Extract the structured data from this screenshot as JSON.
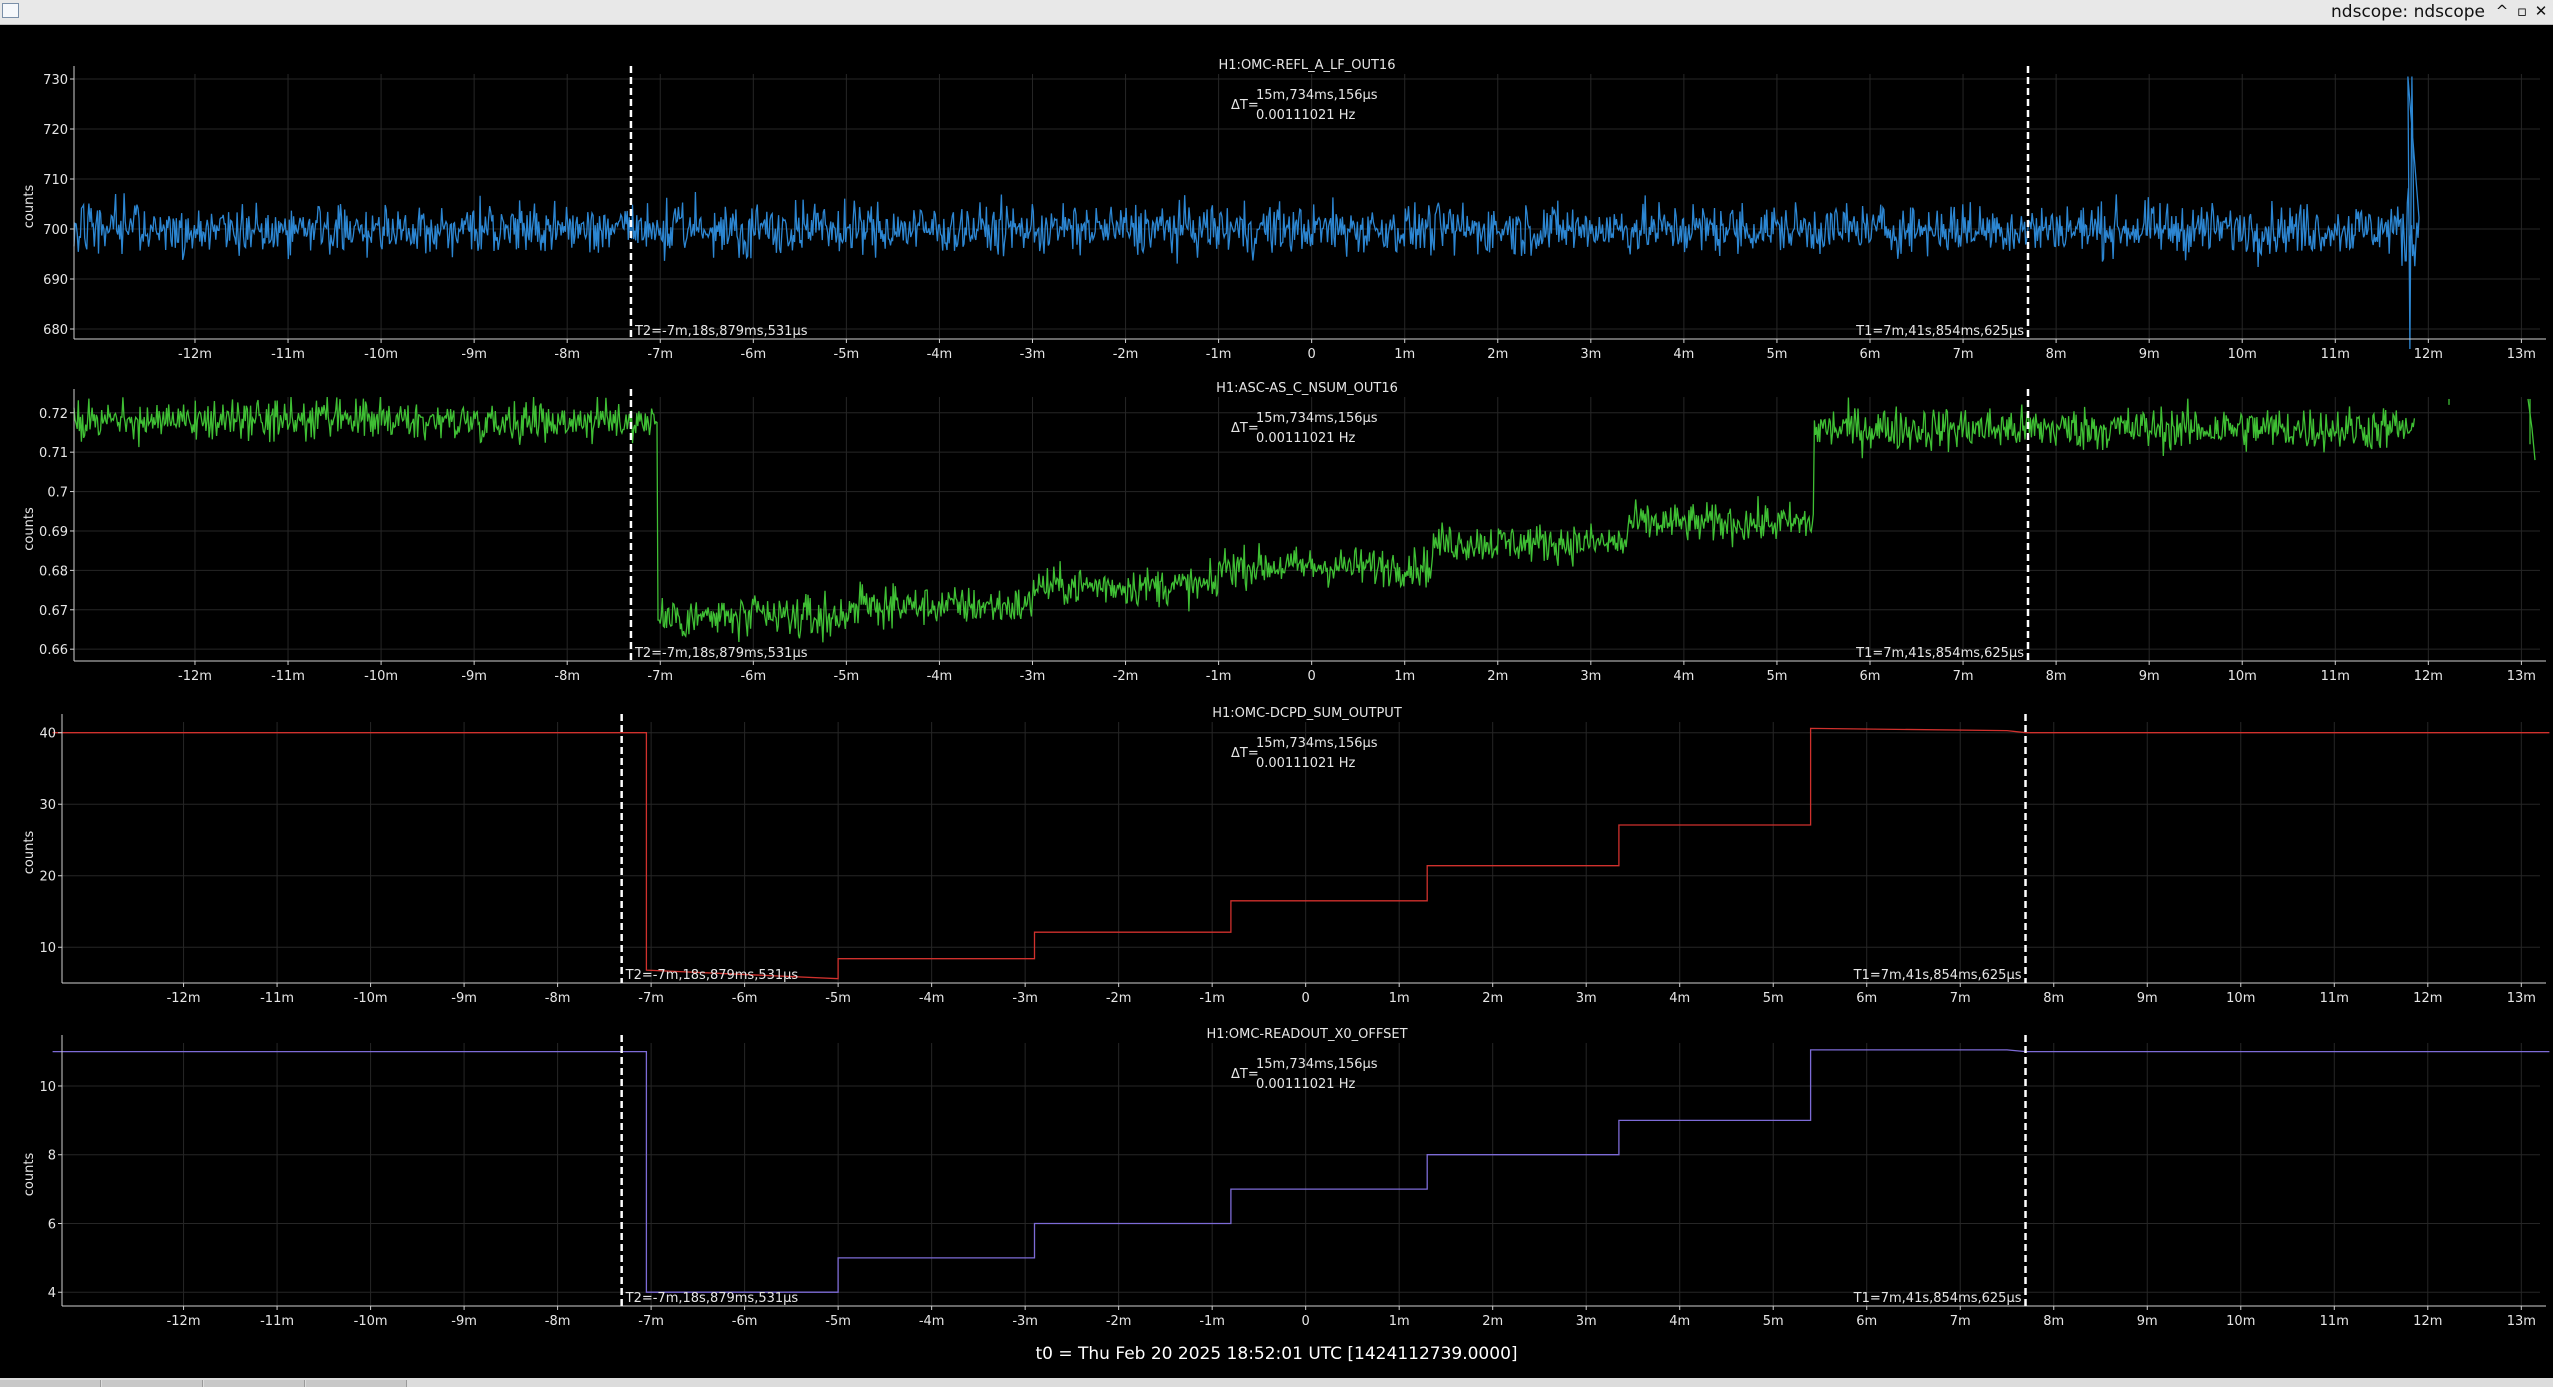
{
  "window": {
    "title": "ndscope: ndscope",
    "buttons": [
      "^",
      "▫",
      "✕"
    ]
  },
  "cursors": {
    "delta_label": "ΔT=",
    "delta_time": "15m,734ms,156µs",
    "delta_freq": "0.00111021 Hz",
    "t1_label": "T1=7m,41s,854ms,625µs",
    "t2_label": "T2=-7m,18s,879ms,531µs",
    "t1_value_min": 7.698,
    "t2_value_min": -7.315
  },
  "t0_text": "t0 = Thu Feb 20 2025 18:52:01 UTC [1424112739.0000]",
  "colors": {
    "background": "#000000",
    "axis": "#cfcfcf",
    "grid": "#262626",
    "cursor": "#ffffff"
  },
  "x_axis": {
    "range": [
      -13.3,
      13.2
    ],
    "tick_values": [
      -12,
      -11,
      -10,
      -9,
      -8,
      -7,
      -6,
      -5,
      -4,
      -3,
      -2,
      -1,
      0,
      1,
      2,
      3,
      4,
      5,
      6,
      7,
      8,
      9,
      10,
      11,
      12,
      13
    ],
    "tick_labels": [
      "-12m",
      "-11m",
      "-10m",
      "-9m",
      "-8m",
      "-7m",
      "-6m",
      "-5m",
      "-4m",
      "-3m",
      "-2m",
      "-1m",
      "0",
      "1m",
      "2m",
      "3m",
      "4m",
      "5m",
      "6m",
      "7m",
      "8m",
      "9m",
      "10m",
      "11m",
      "12m",
      "13m"
    ]
  },
  "chart_data": [
    {
      "type": "line",
      "title": "H1:OMC-REFL_A_LF_OUT16",
      "ylabel": "counts",
      "ylim": [
        678,
        731
      ],
      "y_ticks": [
        680,
        690,
        700,
        710,
        720,
        730
      ],
      "y_tick_labels": [
        "680",
        "690",
        "700",
        "710",
        "720",
        "730"
      ],
      "color": "#2c86d2",
      "series": [
        {
          "kind": "noise",
          "x_start": -13.3,
          "x_end": 11.9,
          "segments": [
            [
              -13.3,
              700,
              3.6
            ],
            [
              11.7,
              700,
              6
            ]
          ]
        }
      ],
      "grid": true
    },
    {
      "type": "line",
      "title": "H1:ASC-AS_C_NSUM_OUT16",
      "ylabel": "counts",
      "ylim": [
        0.657,
        0.724
      ],
      "y_ticks": [
        0.66,
        0.67,
        0.68,
        0.69,
        0.7,
        0.71,
        0.72
      ],
      "y_tick_labels": [
        "0.66",
        "0.67",
        "0.68",
        "0.69",
        "0.7",
        "0.71",
        "0.72"
      ],
      "color": "#3fbf34",
      "series": [
        {
          "kind": "noise",
          "x_start": -13.3,
          "x_end": 11.85,
          "segments": [
            [
              -13.3,
              0.718,
              0.0035
            ],
            [
              -7.03,
              0.668,
              0.004
            ],
            [
              -5.0,
              0.671,
              0.0035
            ],
            [
              -3.0,
              0.676,
              0.0035
            ],
            [
              -1.0,
              0.681,
              0.0035
            ],
            [
              1.3,
              0.687,
              0.0035
            ],
            [
              3.4,
              0.692,
              0.0035
            ],
            [
              5.4,
              0.716,
              0.004
            ]
          ]
        }
      ],
      "grid": true
    },
    {
      "type": "line",
      "title": "H1:OMC-DCPD_SUM_OUTPUT",
      "ylabel": "counts",
      "ylim": [
        5.0,
        41.5
      ],
      "y_ticks": [
        10,
        20,
        30,
        40
      ],
      "y_tick_labels": [
        "10",
        "20",
        "30",
        "40"
      ],
      "color": "#d0312d",
      "series": [
        {
          "kind": "step",
          "points": [
            [
              -13.4,
              40
            ],
            [
              -7.05,
              40
            ],
            [
              -7.05,
              6.8
            ],
            [
              -5.0,
              5.6
            ],
            [
              -5.0,
              8.4
            ],
            [
              -2.9,
              8.4
            ],
            [
              -2.9,
              12.1
            ],
            [
              -0.8,
              12.1
            ],
            [
              -0.8,
              16.5
            ],
            [
              1.3,
              16.5
            ],
            [
              1.3,
              21.4
            ],
            [
              3.35,
              21.4
            ],
            [
              3.35,
              27.1
            ],
            [
              5.4,
              27.1
            ],
            [
              5.4,
              40.6
            ],
            [
              7.5,
              40.3
            ],
            [
              7.7,
              40
            ],
            [
              13.3,
              40
            ]
          ]
        }
      ],
      "grid": true
    },
    {
      "type": "line",
      "title": "H1:OMC-READOUT_X0_OFFSET",
      "ylabel": "counts",
      "ylim": [
        3.6,
        11.25
      ],
      "y_ticks": [
        4,
        6,
        8,
        10
      ],
      "y_tick_labels": [
        "4",
        "6",
        "8",
        "10"
      ],
      "color": "#7d6bd6",
      "series": [
        {
          "kind": "step",
          "points": [
            [
              -13.4,
              11
            ],
            [
              -7.05,
              11
            ],
            [
              -7.05,
              4.0
            ],
            [
              -5.0,
              4.0
            ],
            [
              -5.0,
              5
            ],
            [
              -2.9,
              5
            ],
            [
              -2.9,
              6
            ],
            [
              -0.8,
              6
            ],
            [
              -0.8,
              7
            ],
            [
              1.3,
              7
            ],
            [
              1.3,
              8
            ],
            [
              3.35,
              8
            ],
            [
              3.35,
              9
            ],
            [
              5.4,
              9
            ],
            [
              5.4,
              11.05
            ],
            [
              7.5,
              11.05
            ],
            [
              7.7,
              11
            ],
            [
              13.3,
              11
            ]
          ]
        }
      ],
      "grid": true
    }
  ]
}
